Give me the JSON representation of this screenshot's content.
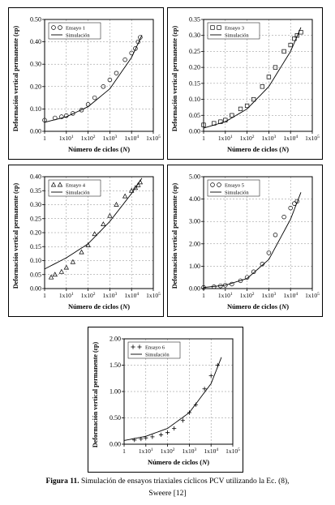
{
  "caption": {
    "label": "Figura 11.",
    "text": "Simulación de ensayos triaxiales cíclicos PCV utilizando la Ec. (8),",
    "line2": "Sweere [12]"
  },
  "chart_data": [
    {
      "type": "scatter",
      "xlabel": "Número de ciclos (N)",
      "ylabel": "Deformación vertical permanente (εp)",
      "xscale": "log",
      "xlim": [
        1,
        100000
      ],
      "xticks": [
        "1",
        "1x10¹",
        "1x10²",
        "1x10³",
        "1x10⁴",
        "1x10⁵"
      ],
      "ylim": [
        0,
        0.5
      ],
      "yticks": [
        "0.00",
        "0.10",
        "0.20",
        "0.30",
        "0.40",
        "0.50"
      ],
      "grid": true,
      "legend_position": "top-left",
      "series": [
        {
          "name": "Ensayo 1",
          "marker": "circle",
          "x": [
            1,
            3,
            6,
            10,
            20,
            50,
            100,
            200,
            500,
            1000,
            2000,
            5000,
            10000,
            15000,
            20000,
            25000
          ],
          "y": [
            0.05,
            0.06,
            0.065,
            0.07,
            0.08,
            0.095,
            0.12,
            0.15,
            0.2,
            0.23,
            0.26,
            0.32,
            0.35,
            0.37,
            0.4,
            0.42
          ]
        },
        {
          "name": "Simulación",
          "marker": "line",
          "x": [
            1,
            10,
            100,
            1000,
            10000,
            30000
          ],
          "y": [
            0.04,
            0.065,
            0.11,
            0.19,
            0.33,
            0.43
          ]
        }
      ]
    },
    {
      "type": "scatter",
      "xlabel": "Número de ciclos (N)",
      "ylabel": "Deformación vertical permanente (εp)",
      "xscale": "log",
      "xlim": [
        1,
        100000
      ],
      "xticks": [
        "1",
        "1x10¹",
        "1x10²",
        "1x10³",
        "1x10⁴",
        "1x10⁵"
      ],
      "ylim": [
        0,
        0.35
      ],
      "yticks": [
        "0.00",
        "0.05",
        "0.10",
        "0.15",
        "0.20",
        "0.25",
        "0.30",
        "0.35"
      ],
      "grid": true,
      "legend_position": "top-left",
      "series": [
        {
          "name": "Ensayo 3",
          "marker": "square",
          "x": [
            1,
            3,
            6,
            10,
            20,
            50,
            100,
            200,
            500,
            1000,
            2000,
            5000,
            10000,
            15000,
            20000,
            30000
          ],
          "y": [
            0.02,
            0.025,
            0.03,
            0.035,
            0.05,
            0.07,
            0.08,
            0.1,
            0.14,
            0.17,
            0.2,
            0.25,
            0.27,
            0.29,
            0.3,
            0.31
          ]
        },
        {
          "name": "Simulación",
          "marker": "line",
          "x": [
            1,
            10,
            100,
            1000,
            10000,
            30000
          ],
          "y": [
            0.01,
            0.03,
            0.07,
            0.14,
            0.25,
            0.325
          ]
        }
      ]
    },
    {
      "type": "scatter",
      "xlabel": "Número de ciclos (N)",
      "ylabel": "Deformación vertical permanente (εp)",
      "xscale": "log",
      "xlim": [
        1,
        100000
      ],
      "xticks": [
        "1",
        "1x10¹",
        "1x10²",
        "1x10³",
        "1x10⁴",
        "1x10⁵"
      ],
      "ylim": [
        0,
        0.4
      ],
      "yticks": [
        "0.00",
        "0.05",
        "0.10",
        "0.15",
        "0.20",
        "0.25",
        "0.30",
        "0.35",
        "0.40"
      ],
      "grid": true,
      "legend_position": "top-left",
      "series": [
        {
          "name": "Ensayo 4",
          "marker": "triangle",
          "x": [
            2,
            3,
            6,
            10,
            20,
            50,
            100,
            200,
            500,
            1000,
            2000,
            5000,
            10000,
            15000,
            20000,
            25000
          ],
          "y": [
            0.04,
            0.05,
            0.06,
            0.075,
            0.095,
            0.13,
            0.155,
            0.195,
            0.23,
            0.26,
            0.3,
            0.33,
            0.35,
            0.36,
            0.37,
            0.38
          ]
        },
        {
          "name": "Simulación",
          "marker": "line",
          "x": [
            1,
            10,
            100,
            1000,
            10000,
            30000
          ],
          "y": [
            0.07,
            0.11,
            0.16,
            0.24,
            0.34,
            0.395
          ]
        }
      ]
    },
    {
      "type": "scatter",
      "xlabel": "Número de ciclos (N)",
      "ylabel": "Deformación vertical permanente (εp)",
      "xscale": "log",
      "xlim": [
        1,
        100000
      ],
      "xticks": [
        "1",
        "1x10¹",
        "1x10²",
        "1x10³",
        "1x10⁴",
        "1x10⁵"
      ],
      "ylim": [
        0,
        5
      ],
      "yticks": [
        "0.00",
        "1.00",
        "2.00",
        "3.00",
        "4.00",
        "5.00"
      ],
      "grid": true,
      "legend_position": "top-left",
      "series": [
        {
          "name": "Ensayo 5",
          "marker": "circle",
          "x": [
            1,
            3,
            6,
            10,
            20,
            50,
            100,
            200,
            500,
            1000,
            2000,
            5000,
            10000,
            15000,
            20000
          ],
          "y": [
            0.05,
            0.08,
            0.12,
            0.15,
            0.2,
            0.35,
            0.5,
            0.75,
            1.1,
            1.6,
            2.4,
            3.2,
            3.6,
            3.8,
            3.9
          ]
        },
        {
          "name": "Simulación",
          "marker": "line",
          "x": [
            1,
            10,
            100,
            1000,
            10000,
            30000
          ],
          "y": [
            0.05,
            0.15,
            0.45,
            1.3,
            3.1,
            4.3
          ]
        }
      ]
    },
    {
      "type": "scatter",
      "xlabel": "Número de ciclos (N)",
      "ylabel": "Deformación vertical permanente (εp)",
      "xscale": "log",
      "xlim": [
        1,
        100000
      ],
      "xticks": [
        "1",
        "1x10¹",
        "1x10²",
        "1x10³",
        "1x10⁴",
        "1x10⁵"
      ],
      "ylim": [
        0,
        2
      ],
      "yticks": [
        "0.00",
        "0.50",
        "1.00",
        "1.50",
        "2.00"
      ],
      "grid": true,
      "legend_position": "top-left",
      "series": [
        {
          "name": "Ensayo 6",
          "marker": "plus",
          "x": [
            3,
            6,
            10,
            20,
            50,
            100,
            200,
            500,
            1000,
            2000,
            5000,
            10000,
            20000
          ],
          "y": [
            0.08,
            0.1,
            0.12,
            0.14,
            0.18,
            0.22,
            0.3,
            0.45,
            0.6,
            0.75,
            1.05,
            1.3,
            1.5
          ]
        },
        {
          "name": "Simulación",
          "marker": "line",
          "x": [
            1,
            10,
            100,
            1000,
            10000,
            30000
          ],
          "y": [
            0.07,
            0.15,
            0.3,
            0.6,
            1.15,
            1.65
          ]
        }
      ]
    }
  ]
}
